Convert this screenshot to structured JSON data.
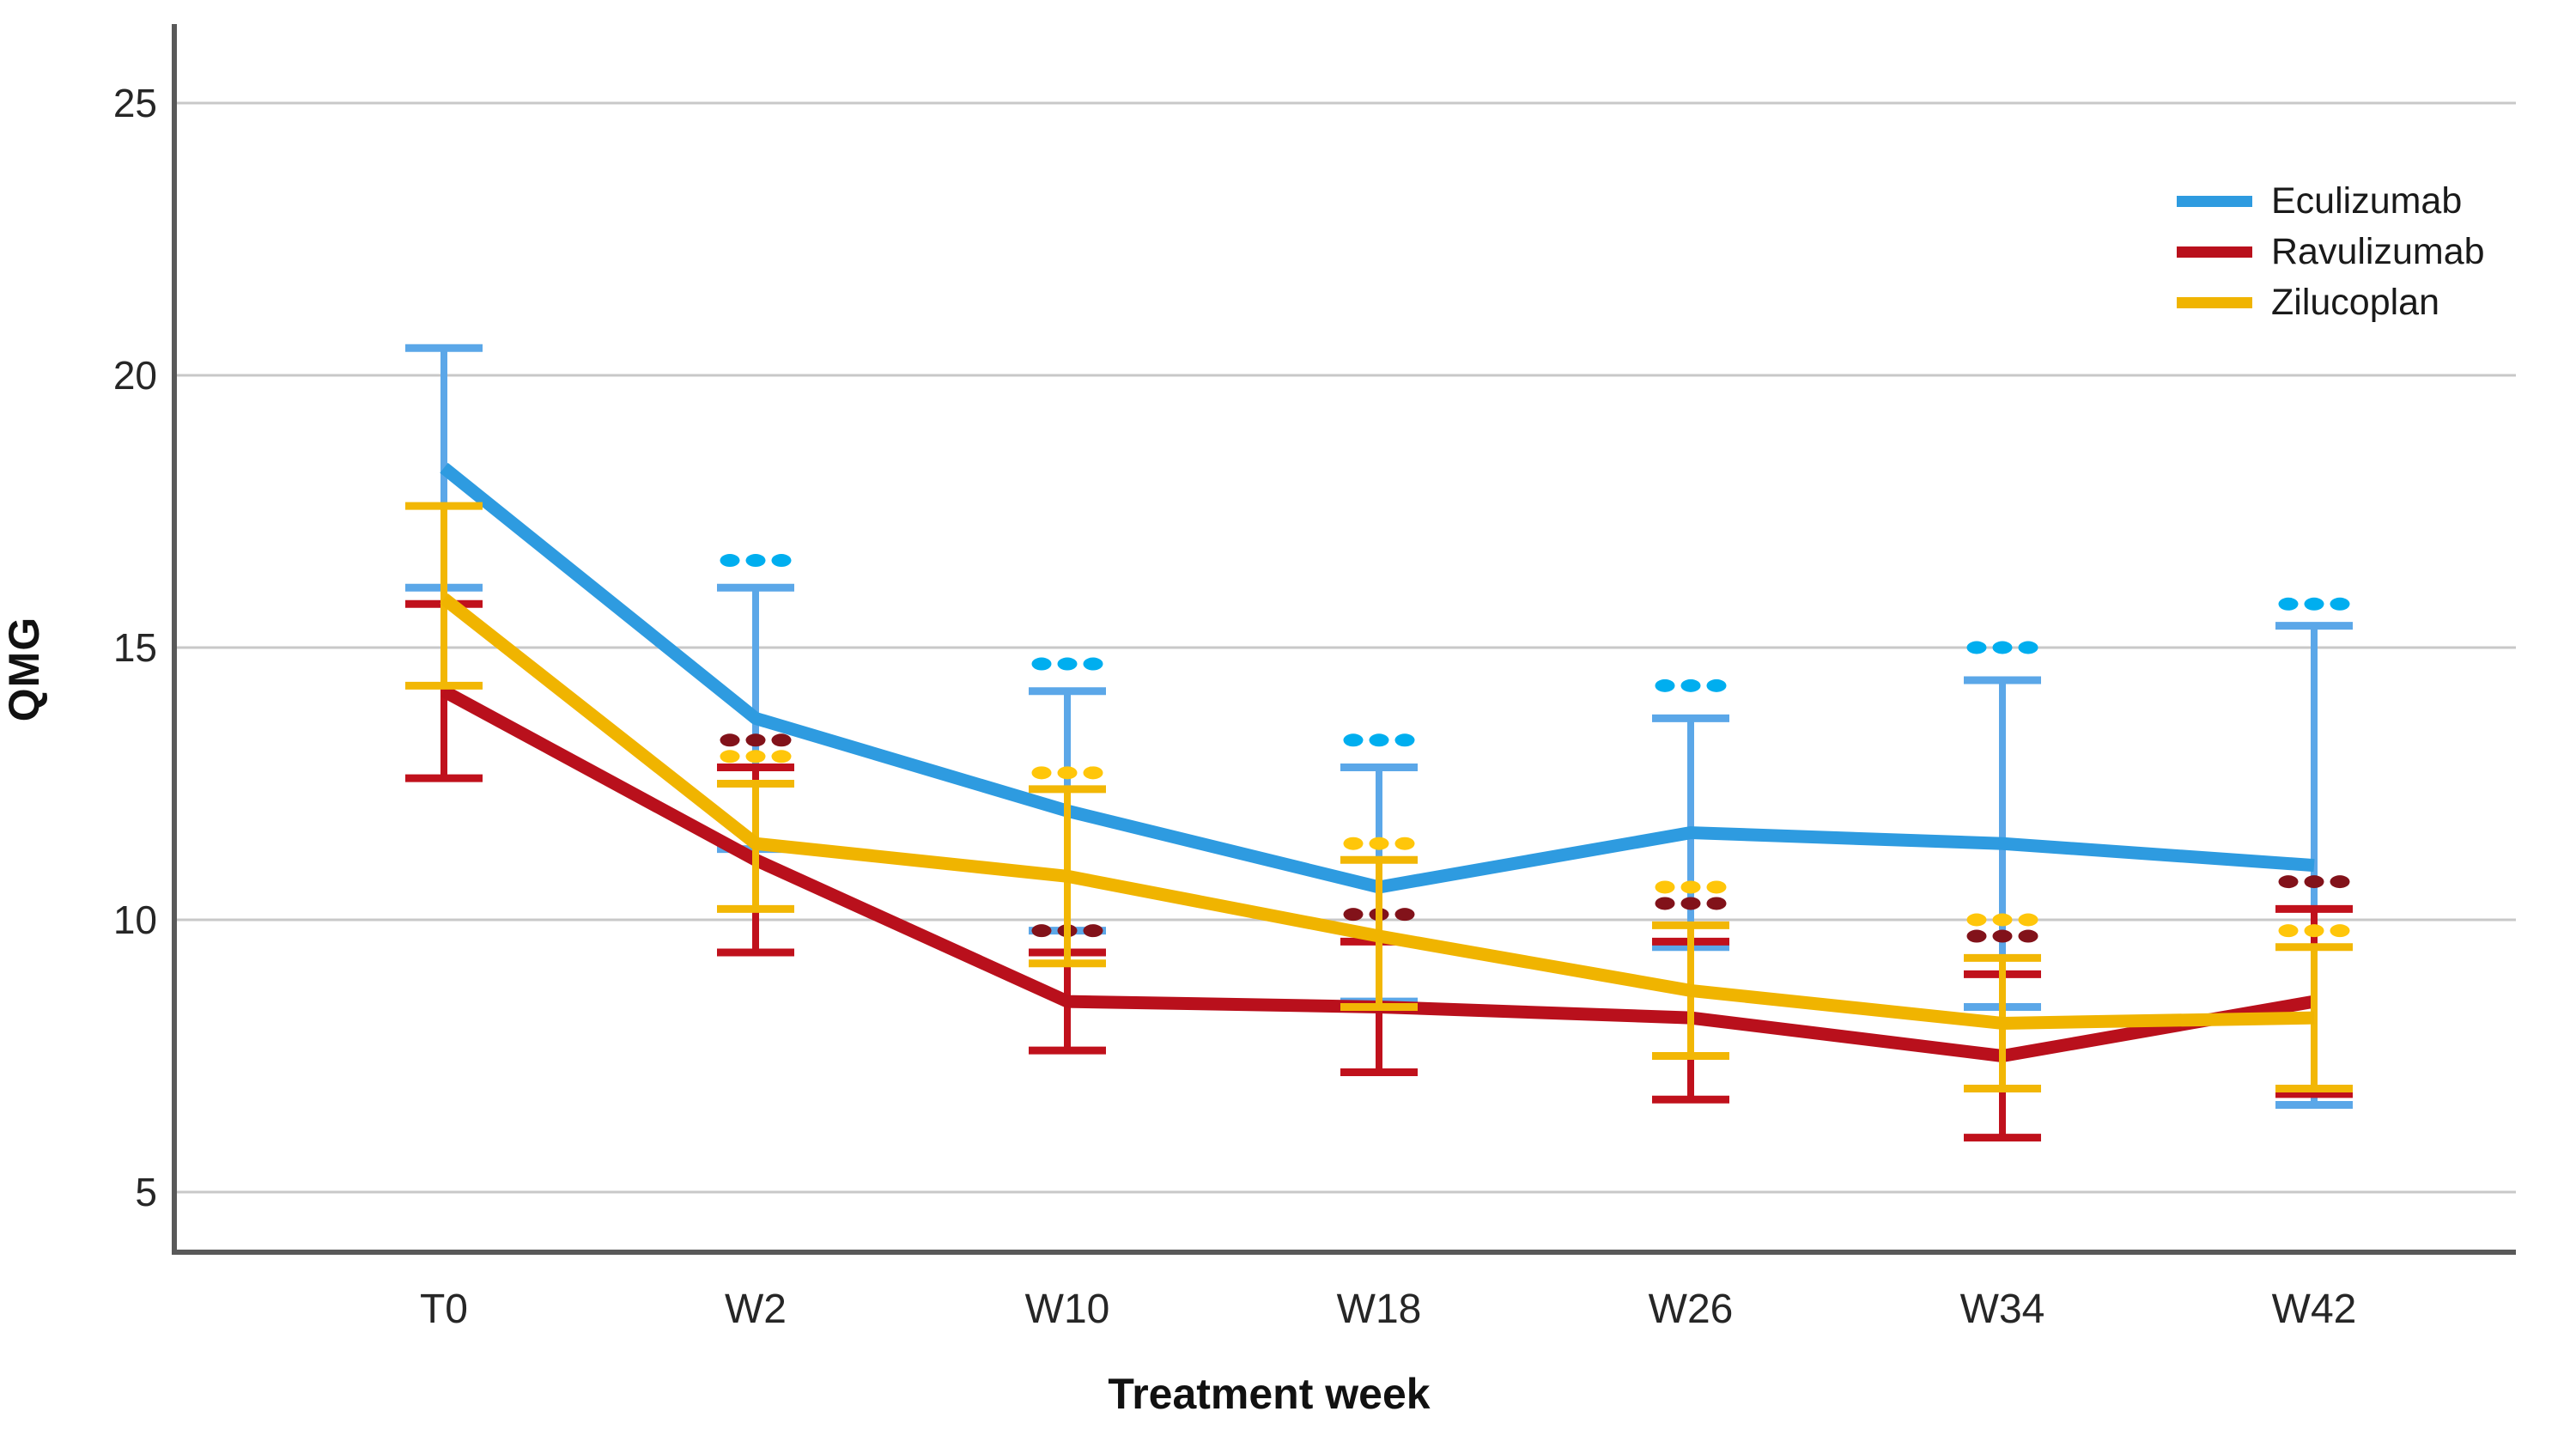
{
  "chart_data": {
    "type": "line",
    "title": "",
    "xlabel": "Treatment week",
    "ylabel": "QMG",
    "categories": [
      "T0",
      "W2",
      "W10",
      "W18",
      "W26",
      "W34",
      "W42"
    ],
    "y_ticks": [
      5,
      10,
      15,
      20,
      25
    ],
    "ylim": [
      3.9,
      26.4
    ],
    "grid": "horizontal",
    "legend_position": "top-right",
    "error_bars": "symmetric, cap-ended",
    "significance_marker": "three dots above error bar cap",
    "series": [
      {
        "name": "Eculizumab",
        "line_color": "#2E9BE0",
        "bar_color": "#5BA7E8",
        "dot_color": "#00AEEF",
        "values": [
          18.3,
          13.7,
          12.0,
          10.6,
          11.6,
          11.4,
          11.0
        ],
        "err_low": [
          16.1,
          11.3,
          9.8,
          8.5,
          9.5,
          8.4,
          6.6
        ],
        "err_high": [
          20.5,
          16.1,
          14.2,
          12.8,
          13.7,
          14.4,
          15.4
        ],
        "sig_dots_y": [
          null,
          16.6,
          14.7,
          13.3,
          14.3,
          15.0,
          15.8
        ]
      },
      {
        "name": "Ravulizumab",
        "line_color": "#B9101C",
        "bar_color": "#C0111C",
        "dot_color": "#82121A",
        "values": [
          14.2,
          11.1,
          8.5,
          8.4,
          8.2,
          7.5,
          8.5
        ],
        "err_low": [
          12.6,
          9.4,
          7.6,
          7.2,
          6.7,
          6.0,
          6.8
        ],
        "err_high": [
          15.8,
          12.8,
          9.4,
          9.6,
          9.6,
          9.0,
          10.2
        ],
        "sig_dots_y": [
          null,
          13.3,
          9.8,
          10.1,
          10.3,
          9.7,
          10.7
        ]
      },
      {
        "name": "Zilucoplan",
        "line_color": "#F0B400",
        "bar_color": "#F2B705",
        "dot_color": "#FFC60A",
        "values": [
          15.9,
          11.4,
          10.8,
          9.7,
          8.7,
          8.1,
          8.2
        ],
        "err_low": [
          14.3,
          10.2,
          9.2,
          8.4,
          7.5,
          6.9,
          6.9
        ],
        "err_high": [
          17.6,
          12.5,
          12.4,
          11.1,
          9.9,
          9.3,
          9.5
        ],
        "sig_dots_y": [
          null,
          13.0,
          12.7,
          11.4,
          10.6,
          10.0,
          9.8
        ]
      }
    ],
    "colors": {
      "gridline": "#C8C8C8",
      "axis": "#595959",
      "tick_label": "#262626"
    }
  }
}
